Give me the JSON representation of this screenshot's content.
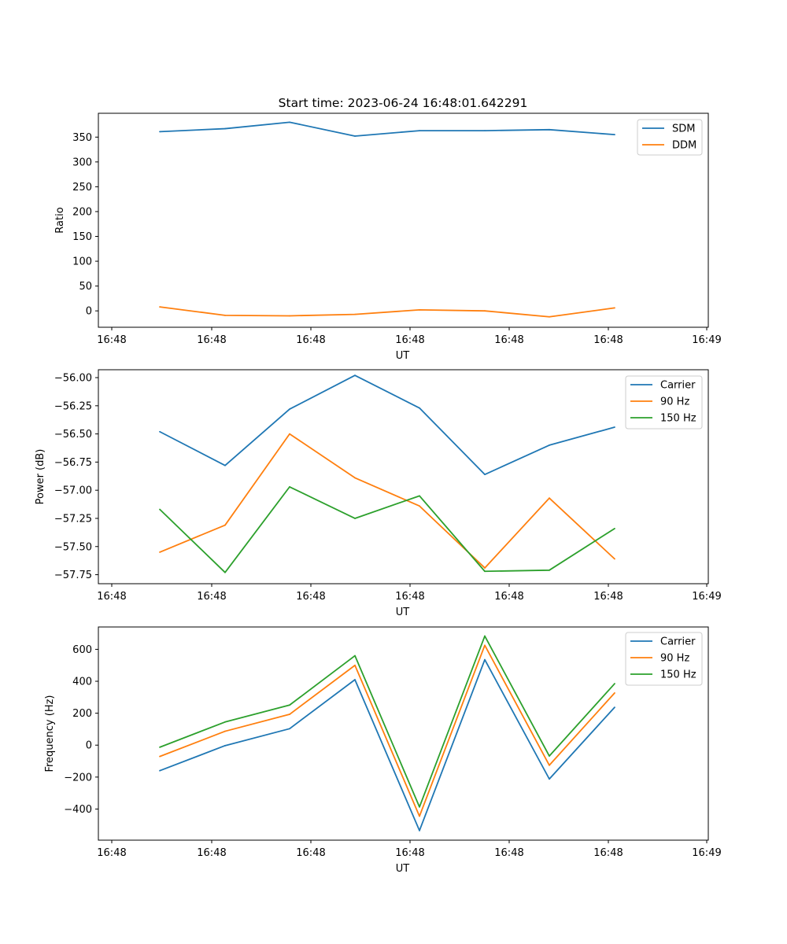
{
  "title": "Start time: 2023-06-24 16:48:01.642291",
  "chart_data": [
    {
      "type": "line",
      "xlabel": "UT",
      "ylabel": "Ratio",
      "x_tick_labels": [
        "16:48",
        "16:48",
        "16:48",
        "16:48",
        "16:48",
        "16:48",
        "16:48"
      ],
      "x_last_tick_label": "16:49",
      "yticks": [
        0,
        50,
        100,
        150,
        200,
        250,
        300,
        350
      ],
      "ylim": [
        -33,
        398
      ],
      "legend": "top-right",
      "series": [
        {
          "name": "SDM",
          "color": "#1f77b4",
          "values": [
            361,
            367,
            380,
            352,
            363,
            363,
            365,
            355
          ]
        },
        {
          "name": "DDM",
          "color": "#ff7f0e",
          "values": [
            8,
            -9,
            -10,
            -7,
            2,
            0,
            -12,
            6
          ]
        }
      ]
    },
    {
      "type": "line",
      "xlabel": "UT",
      "ylabel": "Power (dB)",
      "x_tick_labels": [
        "16:48",
        "16:48",
        "16:48",
        "16:48",
        "16:48",
        "16:48",
        "16:48"
      ],
      "x_last_tick_label": "16:49",
      "yticks": [
        -57.75,
        -57.5,
        -57.25,
        -57.0,
        -56.75,
        -56.5,
        -56.25,
        -56.0
      ],
      "ytick_labels": [
        "−57.75",
        "−57.50",
        "−57.25",
        "−57.00",
        "−56.75",
        "−56.50",
        "−56.25",
        "−56.00"
      ],
      "ylim": [
        -57.83,
        -55.93
      ],
      "legend": "top-right",
      "series": [
        {
          "name": "Carrier",
          "color": "#1f77b4",
          "values": [
            -56.48,
            -56.78,
            -56.28,
            -55.98,
            -56.27,
            -56.86,
            -56.6,
            -56.44
          ]
        },
        {
          "name": "90 Hz",
          "color": "#ff7f0e",
          "values": [
            -57.55,
            -57.31,
            -56.5,
            -56.89,
            -57.14,
            -57.69,
            -57.07,
            -57.61
          ]
        },
        {
          "name": "150 Hz",
          "color": "#2ca02c",
          "values": [
            -57.17,
            -57.73,
            -56.97,
            -57.25,
            -57.05,
            -57.72,
            -57.71,
            -57.34
          ]
        }
      ]
    },
    {
      "type": "line",
      "xlabel": "UT",
      "ylabel": "Frequency (Hz)",
      "x_tick_labels": [
        "16:48",
        "16:48",
        "16:48",
        "16:48",
        "16:48",
        "16:48",
        "16:48"
      ],
      "x_last_tick_label": "16:49",
      "yticks": [
        -400,
        -200,
        0,
        200,
        400,
        600
      ],
      "ytick_labels": [
        "−400",
        "−200",
        "0",
        "200",
        "400",
        "600"
      ],
      "ylim": [
        -595,
        740
      ],
      "legend": "top-right",
      "series": [
        {
          "name": "Carrier",
          "color": "#1f77b4",
          "values": [
            -160,
            -3,
            103,
            410,
            -535,
            535,
            -212,
            237
          ]
        },
        {
          "name": "90 Hz",
          "color": "#ff7f0e",
          "values": [
            -71,
            87,
            193,
            500,
            -445,
            625,
            -126,
            327
          ]
        },
        {
          "name": "150 Hz",
          "color": "#2ca02c",
          "values": [
            -13,
            145,
            251,
            560,
            -387,
            683,
            -68,
            385
          ]
        }
      ]
    }
  ]
}
